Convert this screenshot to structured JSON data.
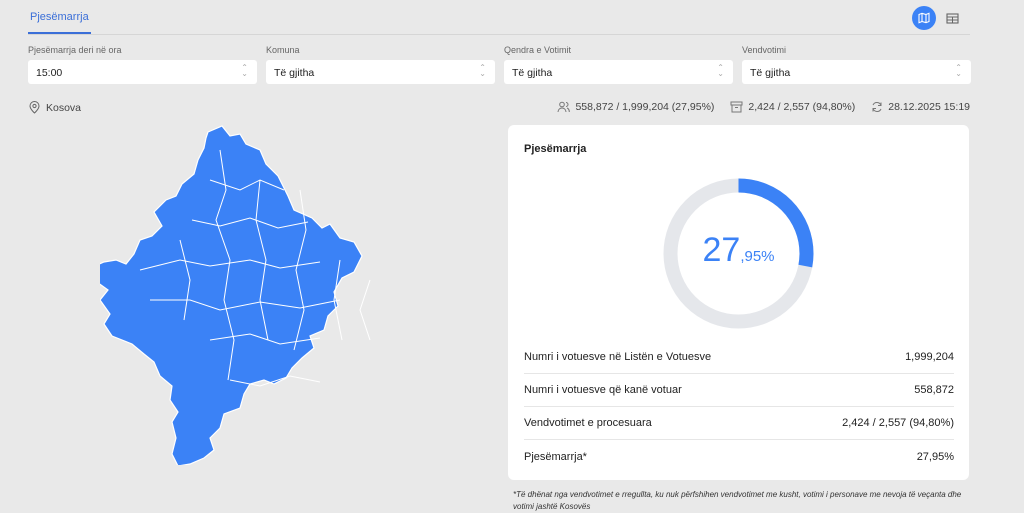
{
  "tabs": [
    {
      "label": "Pjesëmarrja",
      "active": true
    }
  ],
  "view_toggle": {
    "map_icon": "map-icon",
    "table_icon": "table-icon",
    "active": "map"
  },
  "filters": [
    {
      "label": "Pjesëmarrja deri në ora",
      "value": "15:00"
    },
    {
      "label": "Komuna",
      "value": "Të gjitha"
    },
    {
      "label": "Qendra e Votimit",
      "value": "Të gjitha"
    },
    {
      "label": "Vendvotimi",
      "value": "Të gjitha"
    }
  ],
  "location": "Kosova",
  "stats": {
    "voters": "558,872 / 1,999,204 (27,95%)",
    "stations": "2,424 / 2,557 (94,80%)",
    "updated": "28.12.2025 15:19"
  },
  "card": {
    "title": "Pjesëmarrja",
    "percent_int": "27",
    "percent_dec": ",95%",
    "percent_value": 27.95,
    "colors": {
      "fill": "#3b82f6",
      "track": "#e5e7eb"
    },
    "rows": [
      {
        "label": "Numri i votuesve në Listën e Votuesve",
        "value": "1,999,204"
      },
      {
        "label": "Numri i votuesve që kanë votuar",
        "value": "558,872"
      },
      {
        "label": "Vendvotimet e procesuara",
        "value": "2,424 / 2,557 (94,80%)"
      },
      {
        "label": "Pjesëmarrja*",
        "value": "27,95%"
      }
    ]
  },
  "footnote": "*Të dhënat nga vendvotimet e rregullta, ku nuk përfshihen vendvotimet me kusht, votimi i personave me nevoja të veçanta dhe votimi jashtë Kosovës"
}
